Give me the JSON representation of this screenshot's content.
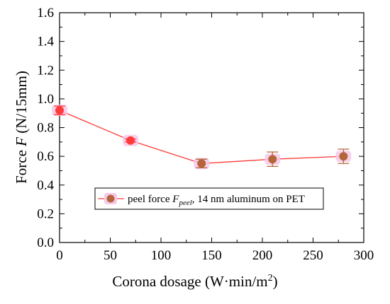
{
  "chart_data": {
    "type": "line",
    "title": "",
    "xlabel": "Corona dosage (W·min/m²)",
    "xlabel_parts": {
      "text": "Corona dosage  (W·min/m",
      "sup": "2",
      "close": ")"
    },
    "ylabel": "Force F (N/15mm)",
    "ylabel_parts": {
      "pre": "Force ",
      "italic": "F",
      "post": " (N/15mm)"
    },
    "xlim": [
      0,
      300
    ],
    "ylim": [
      0.0,
      1.6
    ],
    "xticks": [
      0,
      50,
      100,
      150,
      200,
      250,
      300
    ],
    "yticks": [
      "0.0",
      "0.2",
      "0.4",
      "0.6",
      "0.8",
      "1.0",
      "1.2",
      "1.4",
      "1.6"
    ],
    "grid": false,
    "legend_position": "lower-center",
    "legend": {
      "pre": "peel force ",
      "italic": "F",
      "sub": "peel",
      "post": ", 14 nm aluminum on PET"
    },
    "series": [
      {
        "name": "peel force Fpeel, 14 nm aluminum on PET",
        "line_color": "#ff3b3b",
        "points": [
          {
            "x": 0,
            "y": 0.92,
            "err": 0.03,
            "color": "#ff3b3b"
          },
          {
            "x": 70,
            "y": 0.71,
            "err": 0.01,
            "color": "#ff3b3b"
          },
          {
            "x": 140,
            "y": 0.55,
            "err": 0.03,
            "color": "#b5653a"
          },
          {
            "x": 210,
            "y": 0.58,
            "err": 0.05,
            "color": "#b5653a"
          },
          {
            "x": 280,
            "y": 0.6,
            "err": 0.05,
            "color": "#b5653a"
          }
        ]
      }
    ]
  }
}
